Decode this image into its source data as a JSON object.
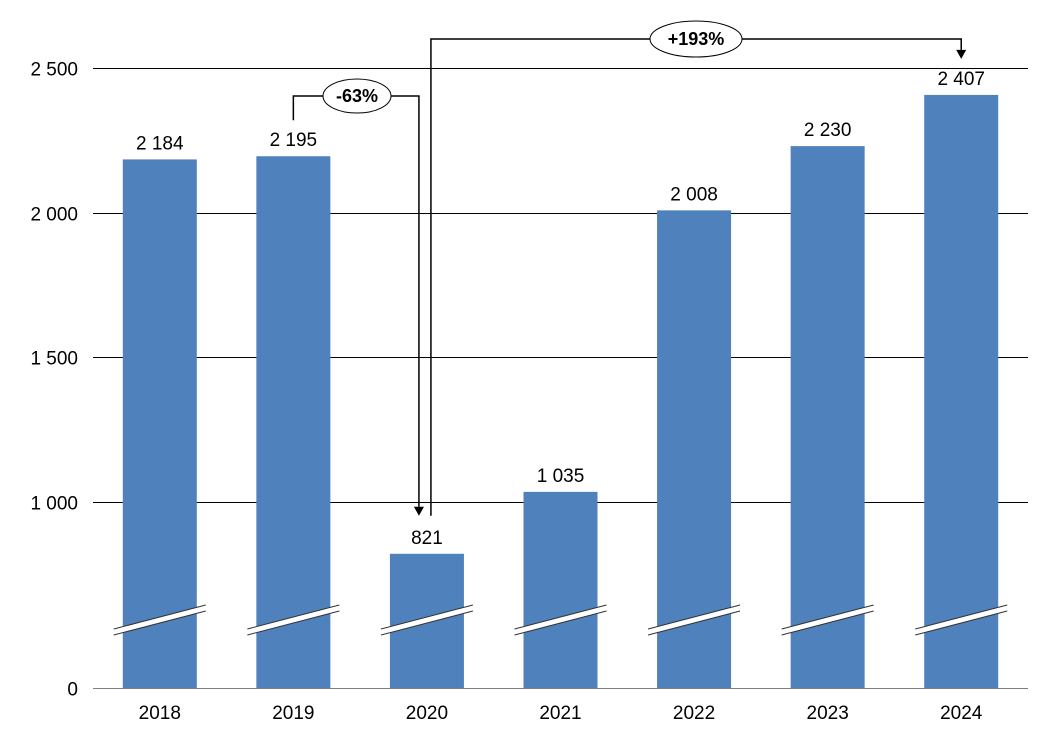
{
  "chart_data": {
    "type": "bar",
    "categories": [
      "2018",
      "2019",
      "2020",
      "2021",
      "2022",
      "2023",
      "2024"
    ],
    "values": [
      2184,
      2195,
      821,
      1035,
      2008,
      2230,
      2407
    ],
    "data_labels": [
      "2 184",
      "2 195",
      "821",
      "1 035",
      "2 008",
      "2 230",
      "2 407"
    ],
    "y_ticks": [
      {
        "value": 0,
        "label": "0"
      },
      {
        "value": 1000,
        "label": "1 000"
      },
      {
        "value": 1500,
        "label": "1 500"
      },
      {
        "value": 2000,
        "label": "2 000"
      },
      {
        "value": 2500,
        "label": "2 500"
      }
    ],
    "axis_break": true,
    "grid": true,
    "bar_color": "#4f81bd",
    "annotations": [
      {
        "label": "-63%",
        "from": "2019",
        "to": "2020"
      },
      {
        "label": "+193%",
        "from": "2020",
        "to": "2024"
      }
    ]
  }
}
